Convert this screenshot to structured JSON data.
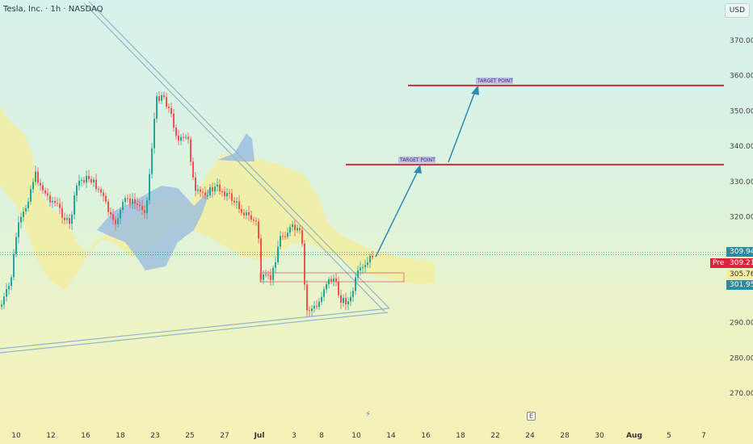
{
  "header": {
    "symbol": "Tesla, Inc. · 1h · NASDAQ"
  },
  "currency": "USD",
  "price_labels": {
    "p1": "309.94",
    "pre_tag": "Pre",
    "p2": "309.21",
    "p3": "305.76",
    "p4": "301.95"
  },
  "colors": {
    "up": "#26a69a",
    "down": "#ef5350",
    "target_line": "#d7263d",
    "arrow": "#2e8bb8",
    "cloud_yellow": "#f4ee9a",
    "cloud_blue": "#9bbde0",
    "label_teal": "#2c8c9c"
  },
  "icons": [
    "lightning-icon",
    "earnings-e-icon"
  ],
  "chart_data": {
    "type": "candlestick",
    "y_ticks": [
      270,
      280,
      290,
      300,
      310,
      320,
      330,
      340,
      350,
      360,
      370
    ],
    "y_range": [
      262,
      378
    ],
    "x_ticks": [
      "10",
      "12",
      "16",
      "18",
      "23",
      "25",
      "27",
      "Jul",
      "3",
      "8",
      "10",
      "14",
      "16",
      "18",
      "22",
      "24",
      "28",
      "30",
      "Aug",
      "5",
      "7"
    ],
    "annotations": [
      {
        "label": "TARGET POINT",
        "price": 334.8
      },
      {
        "label": "TARGET POINT",
        "price": 357.2
      }
    ],
    "current": {
      "price": 309.21,
      "session": "Pre"
    }
  }
}
